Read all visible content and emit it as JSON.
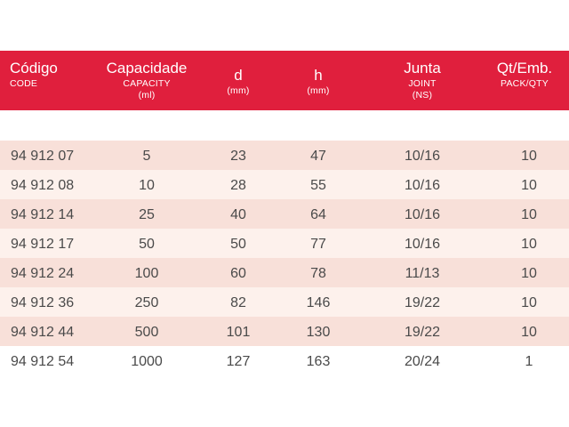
{
  "table": {
    "headers": [
      {
        "main": "Código",
        "sub1": "CODE",
        "sub2": ""
      },
      {
        "main": "Capacidade",
        "sub1": "CAPACITY",
        "sub2": "(ml)"
      },
      {
        "main": "d",
        "sub1": "(mm)",
        "sub2": ""
      },
      {
        "main": "h",
        "sub1": "(mm)",
        "sub2": ""
      },
      {
        "main": "Junta",
        "sub1": "JOINT",
        "sub2": "(NS)"
      },
      {
        "main": "Qt/Emb.",
        "sub1": "PACK/QTY",
        "sub2": ""
      }
    ],
    "rows": [
      [
        "94 912 07",
        "5",
        "23",
        "47",
        "10/16",
        "10"
      ],
      [
        "94 912 08",
        "10",
        "28",
        "55",
        "10/16",
        "10"
      ],
      [
        "94 912 14",
        "25",
        "40",
        "64",
        "10/16",
        "10"
      ],
      [
        "94 912 17",
        "50",
        "50",
        "77",
        "10/16",
        "10"
      ],
      [
        "94 912 24",
        "100",
        "60",
        "78",
        "11/13",
        "10"
      ],
      [
        "94 912 36",
        "250",
        "82",
        "146",
        "19/22",
        "10"
      ],
      [
        "94 912 44",
        "500",
        "101",
        "130",
        "19/22",
        "10"
      ],
      [
        "94 912 54",
        "1000",
        "127",
        "163",
        "20/24",
        "1"
      ]
    ]
  },
  "colors": {
    "header_bg": "#e01f3d",
    "header_text": "#ffffff",
    "row_odd": "#f8e0d9",
    "row_even": "#fdf1ec",
    "body_text": "#4a4a4a"
  }
}
